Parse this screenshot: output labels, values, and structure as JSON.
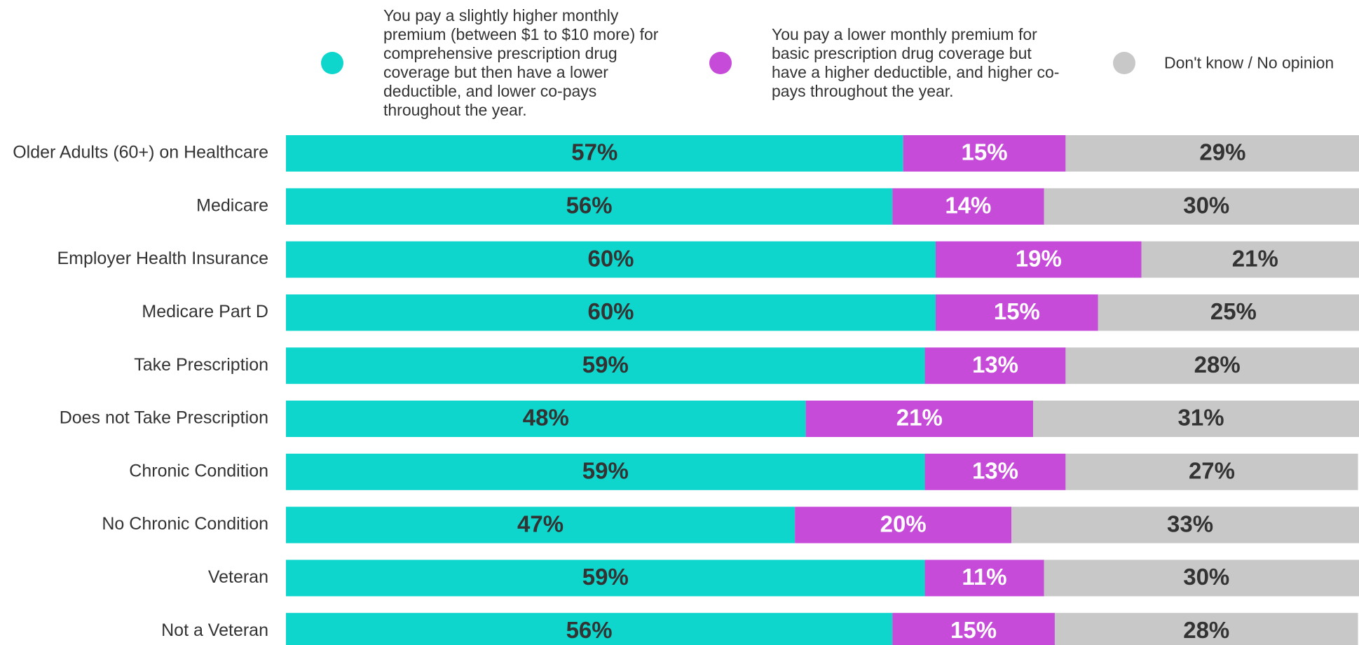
{
  "chart_data": {
    "type": "stacked-bar-horizontal",
    "categories": [
      "Older Adults (60+) on Healthcare",
      "Medicare",
      "Employer Health Insurance",
      "Medicare Part D",
      "Take Prescription",
      "Does not Take Prescription",
      "Chronic Condition",
      "No Chronic Condition",
      "Veteran",
      "Not a Veteran"
    ],
    "xlim": [
      0,
      100
    ],
    "series": [
      {
        "name": "You pay a slightly higher monthly premium (between $1 to $10 more) for comprehensive prescription drug coverage but then have a lower deductible, and lower co-pays throughout the year.",
        "color": "#0fd6cc",
        "values": [
          57,
          56,
          60,
          60,
          59,
          48,
          59,
          47,
          59,
          56
        ],
        "value_labels": [
          "57%",
          "56%",
          "60%",
          "60%",
          "59%",
          "48%",
          "59%",
          "47%",
          "59%",
          "56%"
        ]
      },
      {
        "name": "You pay a lower monthly premium for basic prescription drug coverage but have a higher deductible, and higher co-pays throughout the year.",
        "color": "#c64bd9",
        "values": [
          15,
          14,
          19,
          15,
          13,
          21,
          13,
          20,
          11,
          15
        ],
        "value_labels": [
          "15%",
          "14%",
          "19%",
          "15%",
          "13%",
          "21%",
          "13%",
          "20%",
          "11%",
          "15%"
        ]
      },
      {
        "name": "Don't know / No opinion",
        "color": "#c8c8c8",
        "values": [
          29,
          30,
          21,
          25,
          28,
          31,
          27,
          33,
          30,
          28
        ],
        "value_labels": [
          "29%",
          "30%",
          "21%",
          "25%",
          "28%",
          "31%",
          "27%",
          "33%",
          "30%",
          "28%"
        ]
      }
    ]
  }
}
